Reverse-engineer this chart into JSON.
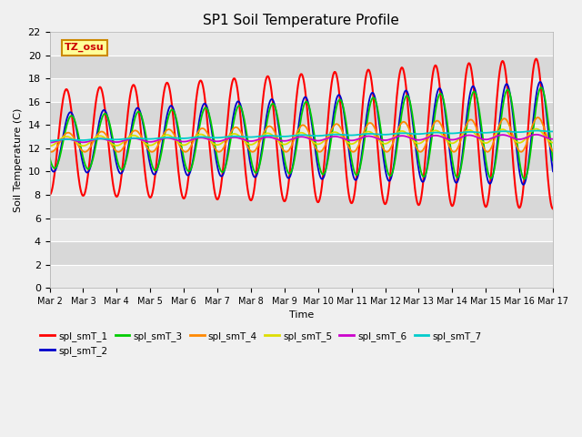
{
  "title": "SP1 Soil Temperature Profile",
  "xlabel": "Time",
  "ylabel": "Soil Temperature (C)",
  "ylim": [
    0,
    22
  ],
  "yticks": [
    0,
    2,
    4,
    6,
    8,
    10,
    12,
    14,
    16,
    18,
    20,
    22
  ],
  "series_colors": [
    "#ff0000",
    "#0000cc",
    "#00cc00",
    "#ff8800",
    "#dddd00",
    "#cc00cc",
    "#00cccc"
  ],
  "series_labels": [
    "spl_smT_1",
    "spl_smT_2",
    "spl_smT_3",
    "spl_smT_4",
    "spl_smT_5",
    "spl_smT_6",
    "spl_smT_7"
  ],
  "xtick_labels": [
    "Mar 2",
    "Mar 3",
    "Mar 4",
    "Mar 5",
    "Mar 6",
    "Mar 7",
    "Mar 8",
    "Mar 9",
    "Mar 10",
    "Mar 11",
    "Mar 12",
    "Mar 13",
    "Mar 14",
    "Mar 15",
    "Mar 16",
    "Mar 17"
  ],
  "annotation_text": "TZ_osu",
  "annotation_color": "#cc0000",
  "annotation_bg": "#ffff99",
  "annotation_border": "#cc8800",
  "fig_bg": "#f0f0f0",
  "plot_bg": "#e8e8e8",
  "band_light": "#e8e8e8",
  "band_dark": "#d8d8d8",
  "n_days": 15,
  "pts_per_day": 48
}
